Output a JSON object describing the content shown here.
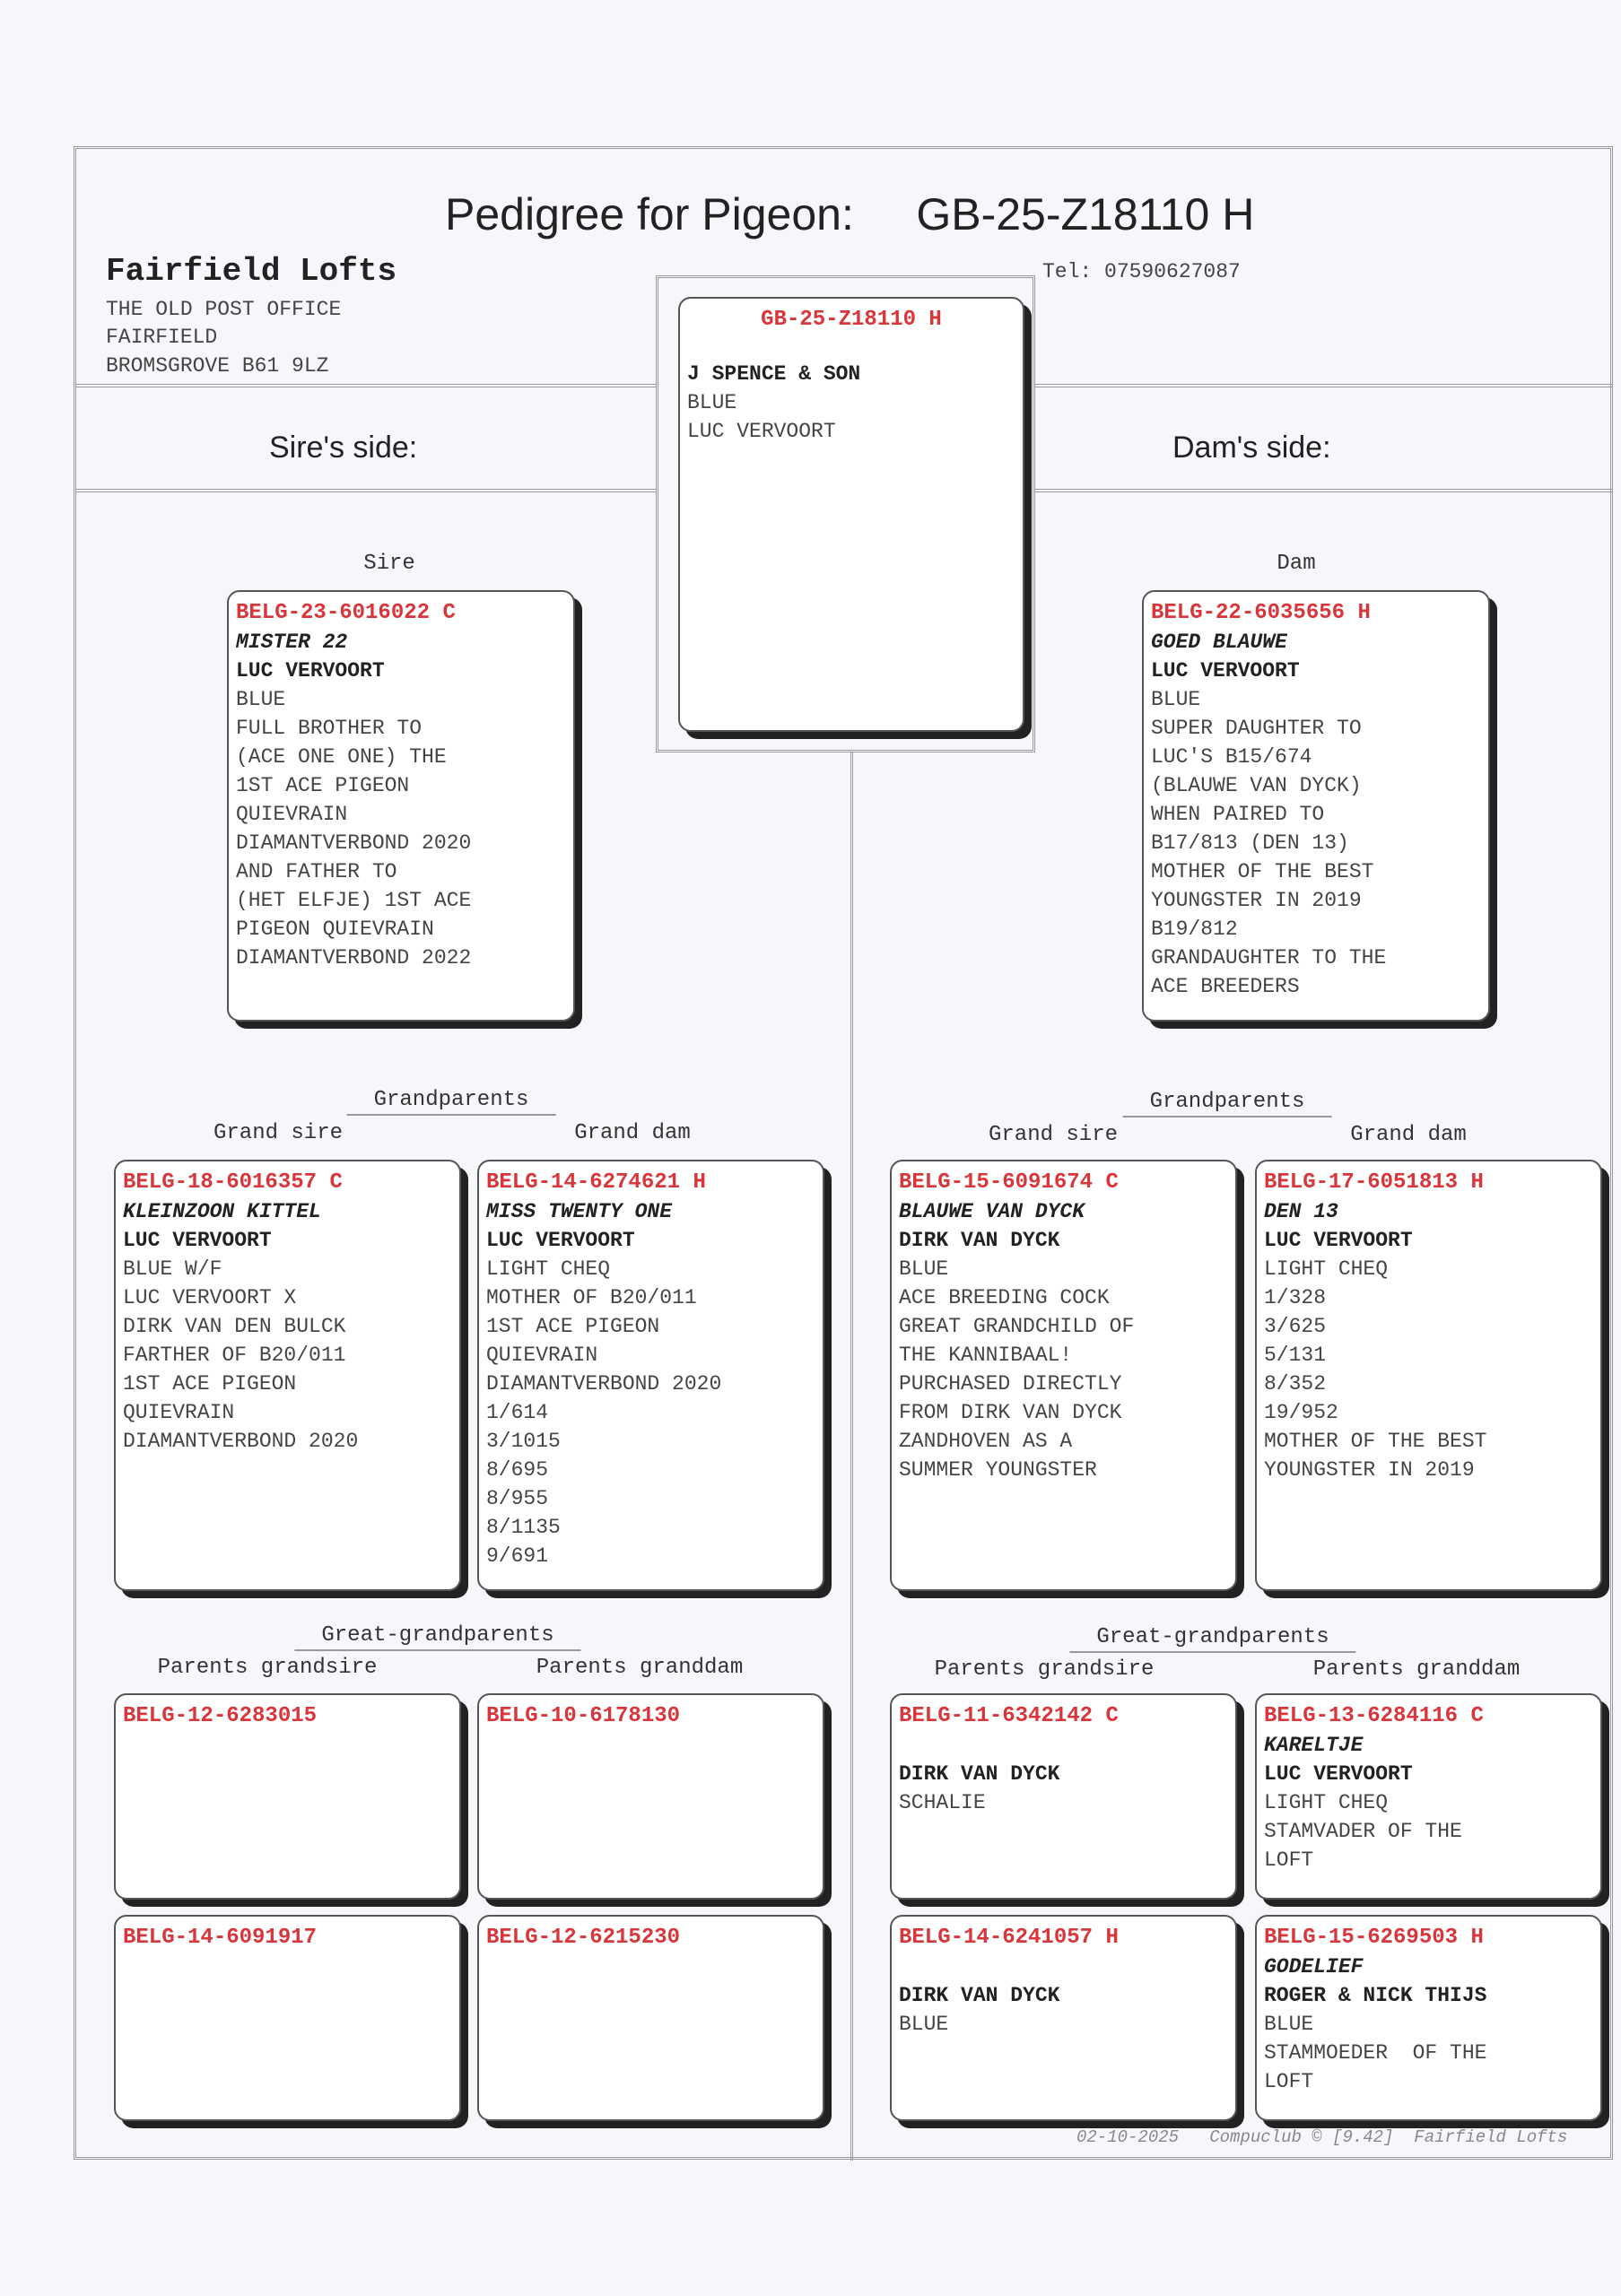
{
  "header": {
    "title": "Pedigree for Pigeon:",
    "pigeon_ring": "GB-25-Z18110 H",
    "loft_name": "Fairfield Lofts",
    "address": [
      "THE OLD POST OFFICE",
      "FAIRFIELD",
      "BROMSGROVE B61 9LZ"
    ],
    "tel": "Tel: 07590627087",
    "sire_side": "Sire's side:",
    "dam_side": "Dam's side:"
  },
  "accent_color": "#d8363a",
  "labels": {
    "sire": "Sire",
    "dam": "Dam",
    "grandparents": "Grandparents",
    "grand_sire": "Grand sire",
    "grand_dam": "Grand dam",
    "great_grandparents": "Great-grandparents",
    "parents_grandsire": "Parents grandsire",
    "parents_granddam": "Parents granddam"
  },
  "cards": {
    "subject": {
      "ring": "GB-25-Z18110 H",
      "name": "",
      "breeder": "J SPENCE & SON",
      "lines": [
        "BLUE",
        "LUC VERVOORT"
      ]
    },
    "sire": {
      "ring": "BELG-23-6016022 C",
      "name": "MISTER 22",
      "breeder": "LUC VERVOORT",
      "lines": [
        "BLUE",
        "FULL BROTHER TO",
        "(ACE ONE ONE) THE",
        "1ST ACE PIGEON",
        "QUIEVRAIN",
        "DIAMANTVERBOND 2020",
        "AND FATHER TO",
        "(HET ELFJE) 1ST ACE",
        "PIGEON QUIEVRAIN",
        "DIAMANTVERBOND 2022"
      ]
    },
    "dam": {
      "ring": "BELG-22-6035656 H",
      "name": "GOED BLAUWE",
      "breeder": "LUC VERVOORT",
      "lines": [
        "BLUE",
        "SUPER DAUGHTER TO",
        "LUC'S B15/674",
        "(BLAUWE VAN DYCK)",
        "WHEN PAIRED TO",
        "B17/813 (DEN 13)",
        "MOTHER OF THE BEST",
        "YOUNGSTER IN 2019",
        "B19/812",
        "GRANDAUGHTER TO THE",
        "ACE BREEDERS"
      ]
    },
    "sire_grand_sire": {
      "ring": "BELG-18-6016357 C",
      "name": "KLEINZOON KITTEL",
      "breeder": "LUC VERVOORT",
      "lines": [
        "BLUE W/F",
        "LUC VERVOORT X",
        "DIRK VAN DEN BULCK",
        "FARTHER OF B20/011",
        "1ST ACE PIGEON",
        "QUIEVRAIN",
        "DIAMANTVERBOND 2020"
      ]
    },
    "sire_grand_dam": {
      "ring": "BELG-14-6274621 H",
      "name": "MISS TWENTY ONE",
      "breeder": "LUC VERVOORT",
      "lines": [
        "LIGHT CHEQ",
        "MOTHER OF B20/011",
        "1ST ACE PIGEON",
        "QUIEVRAIN",
        "DIAMANTVERBOND 2020",
        "1/614",
        "3/1015",
        "8/695",
        "8/955",
        "8/1135",
        "9/691"
      ]
    },
    "dam_grand_sire": {
      "ring": "BELG-15-6091674 C",
      "name": "BLAUWE VAN DYCK",
      "breeder": "DIRK VAN DYCK",
      "lines": [
        "BLUE",
        "ACE BREEDING COCK",
        "GREAT GRANDCHILD OF",
        "THE KANNIBAAL!",
        "PURCHASED DIRECTLY",
        "FROM DIRK VAN DYCK",
        "ZANDHOVEN AS A",
        "SUMMER YOUNGSTER"
      ]
    },
    "dam_grand_dam": {
      "ring": "BELG-17-6051813 H",
      "name": "DEN 13",
      "breeder": "LUC VERVOORT",
      "lines": [
        "LIGHT CHEQ",
        "1/328",
        "3/625",
        "5/131",
        "8/352",
        "19/952",
        "MOTHER OF THE BEST",
        "YOUNGSTER IN 2019"
      ]
    },
    "ggp_1": {
      "ring": "BELG-12-6283015",
      "name": "",
      "breeder": "",
      "lines": []
    },
    "ggp_2": {
      "ring": "BELG-10-6178130",
      "name": "",
      "breeder": "",
      "lines": []
    },
    "ggp_3": {
      "ring": "BELG-14-6091917",
      "name": "",
      "breeder": "",
      "lines": []
    },
    "ggp_4": {
      "ring": "BELG-12-6215230",
      "name": "",
      "breeder": "",
      "lines": []
    },
    "ggp_5": {
      "ring": "BELG-11-6342142 C",
      "name": "",
      "breeder": "DIRK VAN DYCK",
      "lines": [
        "SCHALIE"
      ]
    },
    "ggp_6": {
      "ring": "BELG-13-6284116 C",
      "name": "KARELTJE",
      "breeder": "LUC VERVOORT",
      "lines": [
        "LIGHT CHEQ",
        "STAMVADER OF THE",
        "LOFT"
      ]
    },
    "ggp_7": {
      "ring": "BELG-14-6241057 H",
      "name": "",
      "breeder": "DIRK VAN DYCK",
      "lines": [
        "BLUE"
      ]
    },
    "ggp_8": {
      "ring": "BELG-15-6269503 H",
      "name": "GODELIEF",
      "breeder": "ROGER & NICK THIJS",
      "lines": [
        "BLUE",
        "STAMMOEDER  OF THE",
        "LOFT"
      ]
    }
  },
  "footer": {
    "date": "02-10-2025",
    "software": "Compuclub © [9.42]",
    "loft": "Fairfield Lofts"
  }
}
